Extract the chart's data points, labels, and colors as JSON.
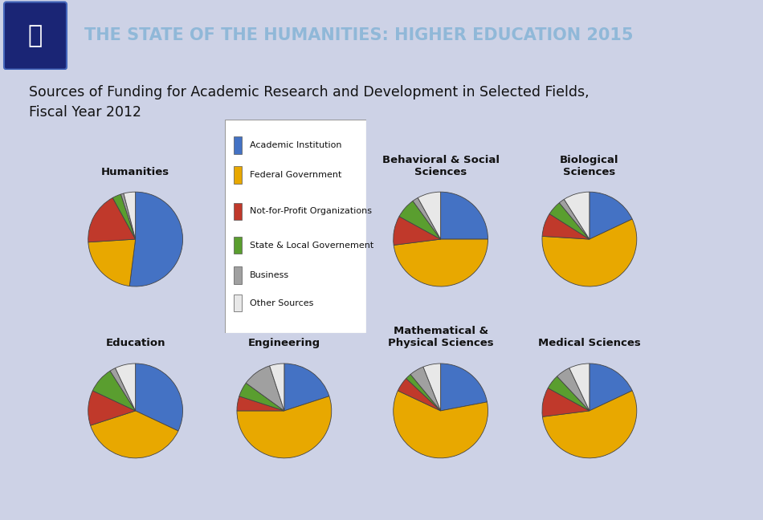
{
  "title": "Sources of Funding for Academic Research and Development in Selected Fields,\nFiscal Year 2012",
  "header_title": "THE STATE OF THE HUMANITIES: HIGHER EDUCATION 2015",
  "header_bg": "#2d2d3a",
  "blue_line_color": "#2255aa",
  "chart_bg": "#cdd2e6",
  "colors": {
    "Academic Institution": "#4472C4",
    "Federal Government": "#E8A800",
    "Not-for-Profit Organizations": "#C0392B",
    "State & Local Governement": "#5a9e2f",
    "Business": "#A0A0A0",
    "Other Sources": "#E8E8E8"
  },
  "legend_labels": [
    "Academic Institution",
    "Federal Government",
    "Not-for-Profit Organizations",
    "State & Local Governement",
    "Business",
    "Other Sources"
  ],
  "pie_data": {
    "Humanities": [
      52,
      22,
      18,
      3,
      1,
      4
    ],
    "Behavioral & Social\nSciences": [
      25,
      48,
      10,
      7,
      2,
      8
    ],
    "Biological\nSciences": [
      18,
      58,
      8,
      5,
      2,
      9
    ],
    "Education": [
      32,
      38,
      12,
      9,
      2,
      7
    ],
    "Engineering": [
      20,
      55,
      5,
      5,
      10,
      5
    ],
    "Mathematical &\nPhysical Sciences": [
      22,
      60,
      5,
      2,
      5,
      6
    ],
    "Medical Sciences": [
      18,
      55,
      10,
      5,
      5,
      7
    ]
  },
  "pie_order": [
    "Humanities",
    "Behavioral & Social\nSciences",
    "Biological\nSciences",
    "Education",
    "Engineering",
    "Mathematical &\nPhysical Sciences",
    "Medical Sciences"
  ]
}
